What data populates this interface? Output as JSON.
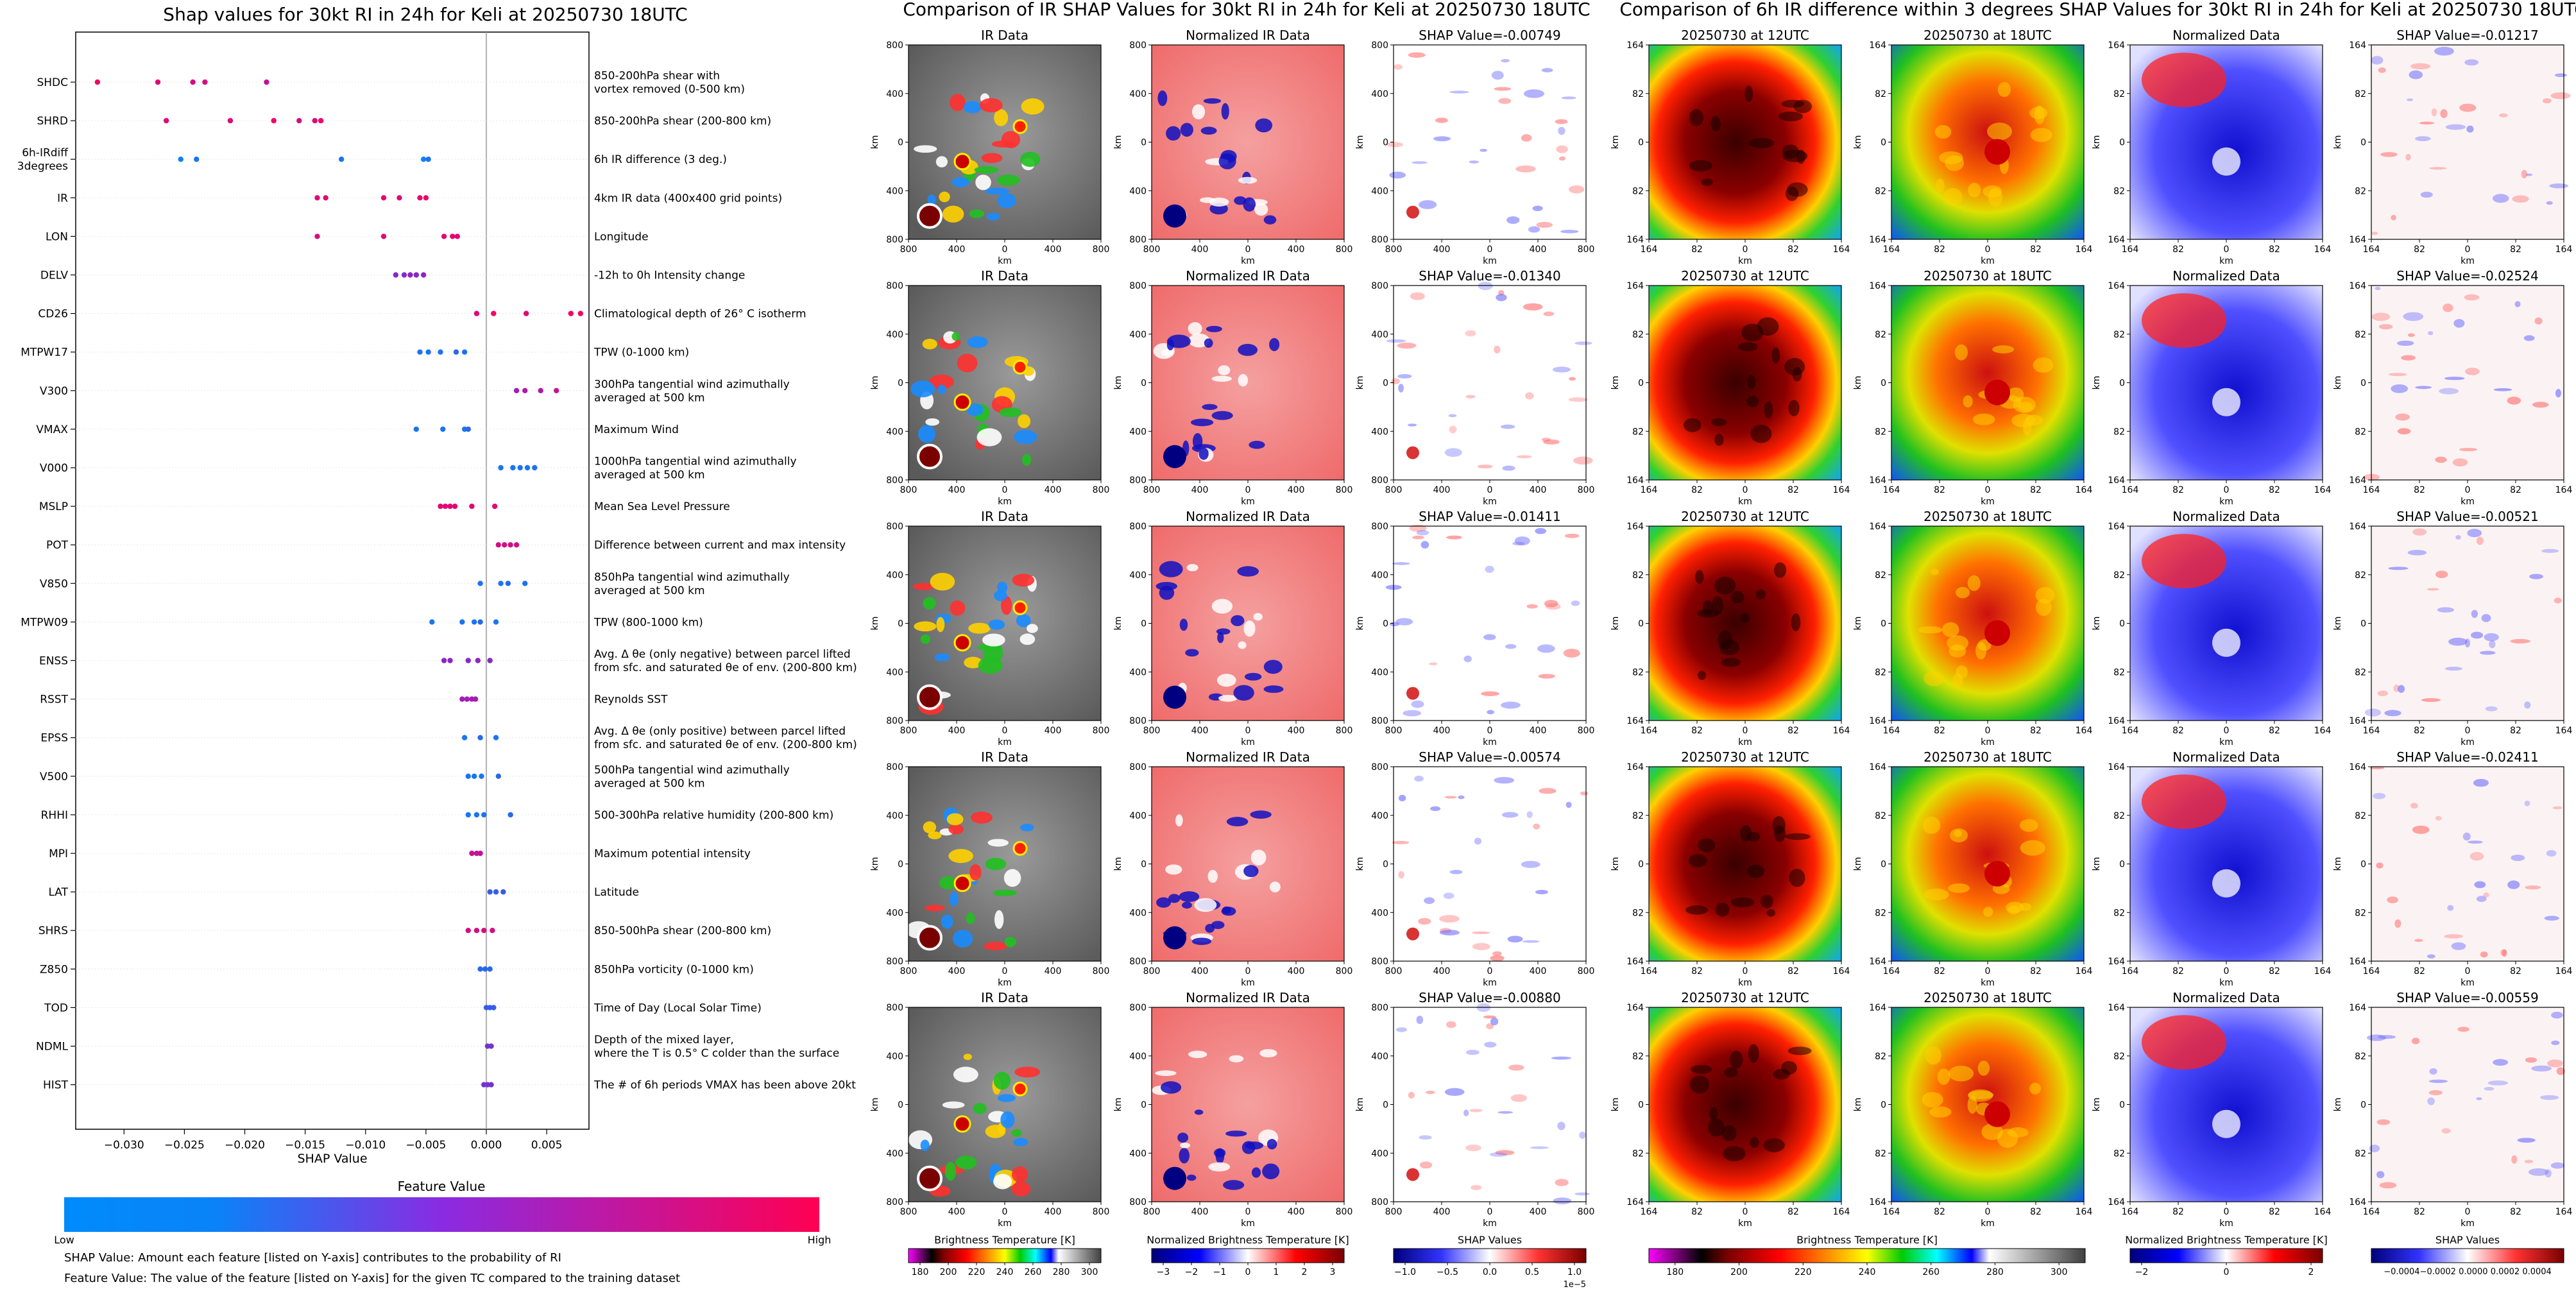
{
  "left_panel": {
    "chart_data": {
      "type": "scatter",
      "title": "Shap values for 30kt RI in 24h for Keli at 20250730 18UTC",
      "xlabel": "SHAP Value",
      "xlim": [
        -0.034,
        0.0085
      ],
      "xticks": [
        -0.03,
        -0.025,
        -0.02,
        -0.015,
        -0.01,
        -0.005,
        0.0,
        0.005
      ],
      "xtick_labels": [
        "−0.030",
        "−0.025",
        "−0.020",
        "−0.015",
        "−0.010",
        "−0.005",
        "0.000",
        "0.005"
      ],
      "grid": false,
      "features": [
        {
          "name": "SHDC",
          "desc": [
            "850-200hPa shear with",
            "vortex removed (0-500 km)"
          ],
          "points": [
            [
              -0.0322,
              0.95
            ],
            [
              -0.0272,
              0.9
            ],
            [
              -0.0243,
              0.85
            ],
            [
              -0.0233,
              0.85
            ],
            [
              -0.0182,
              0.8
            ]
          ]
        },
        {
          "name": "SHRD",
          "desc": [
            "850-200hPa shear (200-800 km)"
          ],
          "points": [
            [
              -0.0265,
              0.9
            ],
            [
              -0.0212,
              0.9
            ],
            [
              -0.0176,
              0.95
            ],
            [
              -0.0155,
              0.85
            ],
            [
              -0.0142,
              0.9
            ],
            [
              -0.0137,
              0.95
            ]
          ]
        },
        {
          "name": "6h-IRdiff\n3degrees",
          "label_lines": [
            "6h-IRdiff",
            "3degrees"
          ],
          "desc": [
            "6h IR difference (3 deg.)"
          ],
          "points": [
            [
              -0.0253,
              0.05
            ],
            [
              -0.024,
              0.1
            ],
            [
              -0.012,
              0.1
            ],
            [
              -0.0052,
              0.05
            ],
            [
              -0.0048,
              0.1
            ]
          ]
        },
        {
          "name": "IR",
          "desc": [
            "4km IR data (400x400 grid points)"
          ],
          "points": [
            [
              -0.014,
              0.9
            ],
            [
              -0.0133,
              0.9
            ],
            [
              -0.0085,
              0.92
            ],
            [
              -0.0072,
              0.88
            ],
            [
              -0.0055,
              0.9
            ],
            [
              -0.005,
              0.95
            ]
          ]
        },
        {
          "name": "LON",
          "desc": [
            "Longitude"
          ],
          "points": [
            [
              -0.014,
              0.85
            ],
            [
              -0.0085,
              0.9
            ],
            [
              -0.0035,
              0.9
            ],
            [
              -0.0028,
              0.92
            ],
            [
              -0.0024,
              0.9
            ]
          ]
        },
        {
          "name": "DELV",
          "desc": [
            "-12h to 0h Intensity change"
          ],
          "points": [
            [
              -0.0075,
              0.55
            ],
            [
              -0.0068,
              0.55
            ],
            [
              -0.0063,
              0.6
            ],
            [
              -0.0058,
              0.55
            ],
            [
              -0.0052,
              0.6
            ]
          ]
        },
        {
          "name": "CD26",
          "desc": [
            "Climatological depth of 26° C isotherm"
          ],
          "points": [
            [
              -0.0008,
              0.9
            ],
            [
              0.0006,
              0.95
            ],
            [
              0.0033,
              0.9
            ],
            [
              0.007,
              0.95
            ],
            [
              0.0078,
              0.95
            ]
          ]
        },
        {
          "name": "MTPW17",
          "desc": [
            "TPW (0-1000 km)"
          ],
          "points": [
            [
              -0.0055,
              0.1
            ],
            [
              -0.0048,
              0.1
            ],
            [
              -0.0038,
              0.1
            ],
            [
              -0.0025,
              0.15
            ],
            [
              -0.0018,
              0.1
            ]
          ]
        },
        {
          "name": "V300",
          "desc": [
            "300hPa tangential wind azimuthally",
            "averaged at 500 km"
          ],
          "points": [
            [
              0.0025,
              0.7
            ],
            [
              0.0032,
              0.75
            ],
            [
              0.0045,
              0.75
            ],
            [
              0.0058,
              0.8
            ]
          ]
        },
        {
          "name": "VMAX",
          "desc": [
            "Maximum Wind"
          ],
          "points": [
            [
              -0.0058,
              0.1
            ],
            [
              -0.0036,
              0.1
            ],
            [
              -0.0018,
              0.1
            ],
            [
              -0.0015,
              0.15
            ]
          ]
        },
        {
          "name": "V000",
          "desc": [
            "1000hPa tangential wind azimuthally",
            "averaged at 500 km"
          ],
          "points": [
            [
              0.0012,
              0.1
            ],
            [
              0.0022,
              0.1
            ],
            [
              0.0028,
              0.1
            ],
            [
              0.0034,
              0.1
            ],
            [
              0.004,
              0.1
            ]
          ]
        },
        {
          "name": "MSLP",
          "desc": [
            "Mean Sea Level Pressure"
          ],
          "points": [
            [
              -0.0038,
              0.9
            ],
            [
              -0.0034,
              0.9
            ],
            [
              -0.003,
              0.9
            ],
            [
              -0.0026,
              0.9
            ],
            [
              -0.0012,
              0.9
            ],
            [
              0.0007,
              0.9
            ]
          ]
        },
        {
          "name": "POT",
          "desc": [
            "Difference between current and max intensity"
          ],
          "points": [
            [
              0.001,
              0.85
            ],
            [
              0.0015,
              0.85
            ],
            [
              0.002,
              0.85
            ],
            [
              0.0025,
              0.85
            ]
          ]
        },
        {
          "name": "V850",
          "desc": [
            "850hPa tangential wind azimuthally",
            "averaged at 500 km"
          ],
          "points": [
            [
              -0.0005,
              0.1
            ],
            [
              0.0012,
              0.1
            ],
            [
              0.0018,
              0.15
            ],
            [
              0.0032,
              0.1
            ]
          ]
        },
        {
          "name": "MTPW09",
          "desc": [
            "TPW (800-1000 km)"
          ],
          "points": [
            [
              -0.0045,
              0.1
            ],
            [
              -0.002,
              0.1
            ],
            [
              -0.001,
              0.1
            ],
            [
              -0.0005,
              0.15
            ],
            [
              0.0008,
              0.1
            ]
          ]
        },
        {
          "name": "ENSS",
          "desc": [
            "Avg. Δ θe (only negative) between parcel lifted",
            "from sfc. and saturated θe of env. (200-800 km)"
          ],
          "points": [
            [
              -0.0035,
              0.6
            ],
            [
              -0.003,
              0.6
            ],
            [
              -0.0015,
              0.55
            ],
            [
              -0.0007,
              0.6
            ],
            [
              0.0003,
              0.55
            ]
          ]
        },
        {
          "name": "RSST",
          "desc": [
            "Reynolds SST"
          ],
          "points": [
            [
              -0.002,
              0.7
            ],
            [
              -0.0016,
              0.7
            ],
            [
              -0.0012,
              0.7
            ],
            [
              -0.0009,
              0.7
            ]
          ]
        },
        {
          "name": "EPSS",
          "desc": [
            "Avg. Δ θe (only positive) between parcel lifted",
            "from sfc. and saturated θe of env. (200-800 km)"
          ],
          "points": [
            [
              -0.0018,
              0.1
            ],
            [
              -0.0005,
              0.15
            ],
            [
              0.0008,
              0.1
            ]
          ]
        },
        {
          "name": "V500",
          "desc": [
            "500hPa tangential wind azimuthally",
            "averaged at 500 km"
          ],
          "points": [
            [
              -0.0015,
              0.1
            ],
            [
              -0.001,
              0.1
            ],
            [
              -0.0004,
              0.1
            ],
            [
              0.001,
              0.15
            ]
          ]
        },
        {
          "name": "RHHI",
          "desc": [
            "500-300hPa relative humidity (200-800 km)"
          ],
          "points": [
            [
              -0.0015,
              0.1
            ],
            [
              -0.0008,
              0.1
            ],
            [
              -0.0002,
              0.1
            ],
            [
              0.002,
              0.15
            ]
          ]
        },
        {
          "name": "MPI",
          "desc": [
            "Maximum potential intensity"
          ],
          "points": [
            [
              -0.0012,
              0.8
            ],
            [
              -0.0008,
              0.8
            ],
            [
              -0.0005,
              0.8
            ]
          ]
        },
        {
          "name": "LAT",
          "desc": [
            "Latitude"
          ],
          "points": [
            [
              0.0003,
              0.2
            ],
            [
              0.0008,
              0.2
            ],
            [
              0.0014,
              0.2
            ]
          ]
        },
        {
          "name": "SHRS",
          "desc": [
            "850-500hPa shear (200-800 km)"
          ],
          "points": [
            [
              -0.0015,
              0.85
            ],
            [
              -0.0008,
              0.85
            ],
            [
              -0.0002,
              0.85
            ],
            [
              0.0005,
              0.85
            ]
          ]
        },
        {
          "name": "Z850",
          "desc": [
            "850hPa vorticity (0-1000 km)"
          ],
          "points": [
            [
              -0.0005,
              0.15
            ],
            [
              -0.0001,
              0.15
            ],
            [
              0.0003,
              0.15
            ]
          ]
        },
        {
          "name": "TOD",
          "desc": [
            "Time of Day (Local Solar Time)"
          ],
          "points": [
            [
              0.0,
              0.2
            ],
            [
              0.0003,
              0.2
            ],
            [
              0.0006,
              0.2
            ]
          ]
        },
        {
          "name": "NDML",
          "desc": [
            "Depth of the mixed layer,",
            "where the T is 0.5° C colder than the surface"
          ],
          "points": [
            [
              0.0001,
              0.45
            ],
            [
              0.0004,
              0.45
            ]
          ]
        },
        {
          "name": "HIST",
          "desc": [
            "The # of 6h periods VMAX has been above 20kt"
          ],
          "points": [
            [
              -0.0002,
              0.45
            ],
            [
              0.0001,
              0.45
            ],
            [
              0.0004,
              0.45
            ]
          ]
        }
      ]
    },
    "colorbar": {
      "title": "Feature Value",
      "low": "Low",
      "high": "High",
      "colors": [
        "#008bfb",
        "#5a3fd8",
        "#9b1fc0",
        "#ff0052"
      ]
    },
    "notes": [
      "SHAP Value: Amount each feature [listed on Y-axis] contributes to the probability of RI",
      "Feature Value: The value of the feature [listed on Y-axis] for the given TC compared to the training dataset"
    ]
  },
  "ir_panel": {
    "title": "Comparison of IR SHAP Values for 30kt RI in 24h for Keli at 20250730 18UTC",
    "column_titles": [
      "IR Data",
      "Normalized IR Data"
    ],
    "shap_titles": [
      "SHAP Value=-0.00749",
      "SHAP Value=-0.01340",
      "SHAP Value=-0.01411",
      "SHAP Value=-0.00574",
      "SHAP Value=-0.00880"
    ],
    "axis_label": "km",
    "xtick_labels": [
      "800",
      "400",
      "0",
      "400",
      "800"
    ],
    "ytick_labels": [
      "800",
      "400",
      "0",
      "400",
      "800"
    ],
    "colorbars": [
      {
        "title": "Brightness Temperature [K]",
        "ticks": [
          "180",
          "200",
          "220",
          "240",
          "260",
          "280",
          "300"
        ]
      },
      {
        "title": "Normalized Brightness Temperature [K]",
        "ticks": [
          "−3",
          "−2",
          "−1",
          "0",
          "1",
          "2",
          "3"
        ]
      },
      {
        "title": "SHAP Values",
        "ticks": [
          "−1.0",
          "−0.5",
          "0.0",
          "0.5",
          "1.0"
        ],
        "exponent": "1e−5"
      }
    ]
  },
  "diff_panel": {
    "title": "Comparison of 6h IR difference within 3 degrees SHAP Values for 30kt RI in 24h for Keli at 20250730 18UTC",
    "column_titles": [
      "20250730 at 12UTC",
      "20250730 at 18UTC",
      "Normalized Data"
    ],
    "shap_titles": [
      "SHAP Value=-0.01217",
      "SHAP Value=-0.02524",
      "SHAP Value=-0.00521",
      "SHAP Value=-0.02411",
      "SHAP Value=-0.00559"
    ],
    "axis_label": "km",
    "xtick_labels": [
      "164",
      "82",
      "0",
      "82",
      "164"
    ],
    "ytick_labels": [
      "164",
      "82",
      "0",
      "82",
      "164"
    ],
    "colorbars": [
      {
        "title": "Brightness Temperature [K]",
        "ticks": [
          "180",
          "200",
          "220",
          "240",
          "260",
          "280",
          "300"
        ]
      },
      {
        "title": "Normalized Brightness Temperature [K]",
        "ticks": [
          "−2",
          "0",
          "2"
        ]
      },
      {
        "title": "SHAP Values",
        "ticks": [
          "−0.0004",
          "−0.0002",
          "0.0000",
          "0.0002",
          "0.0004"
        ],
        "tick_text": "−0.0004−0.0002 0.0000 0.0002 0.0004"
      }
    ]
  }
}
